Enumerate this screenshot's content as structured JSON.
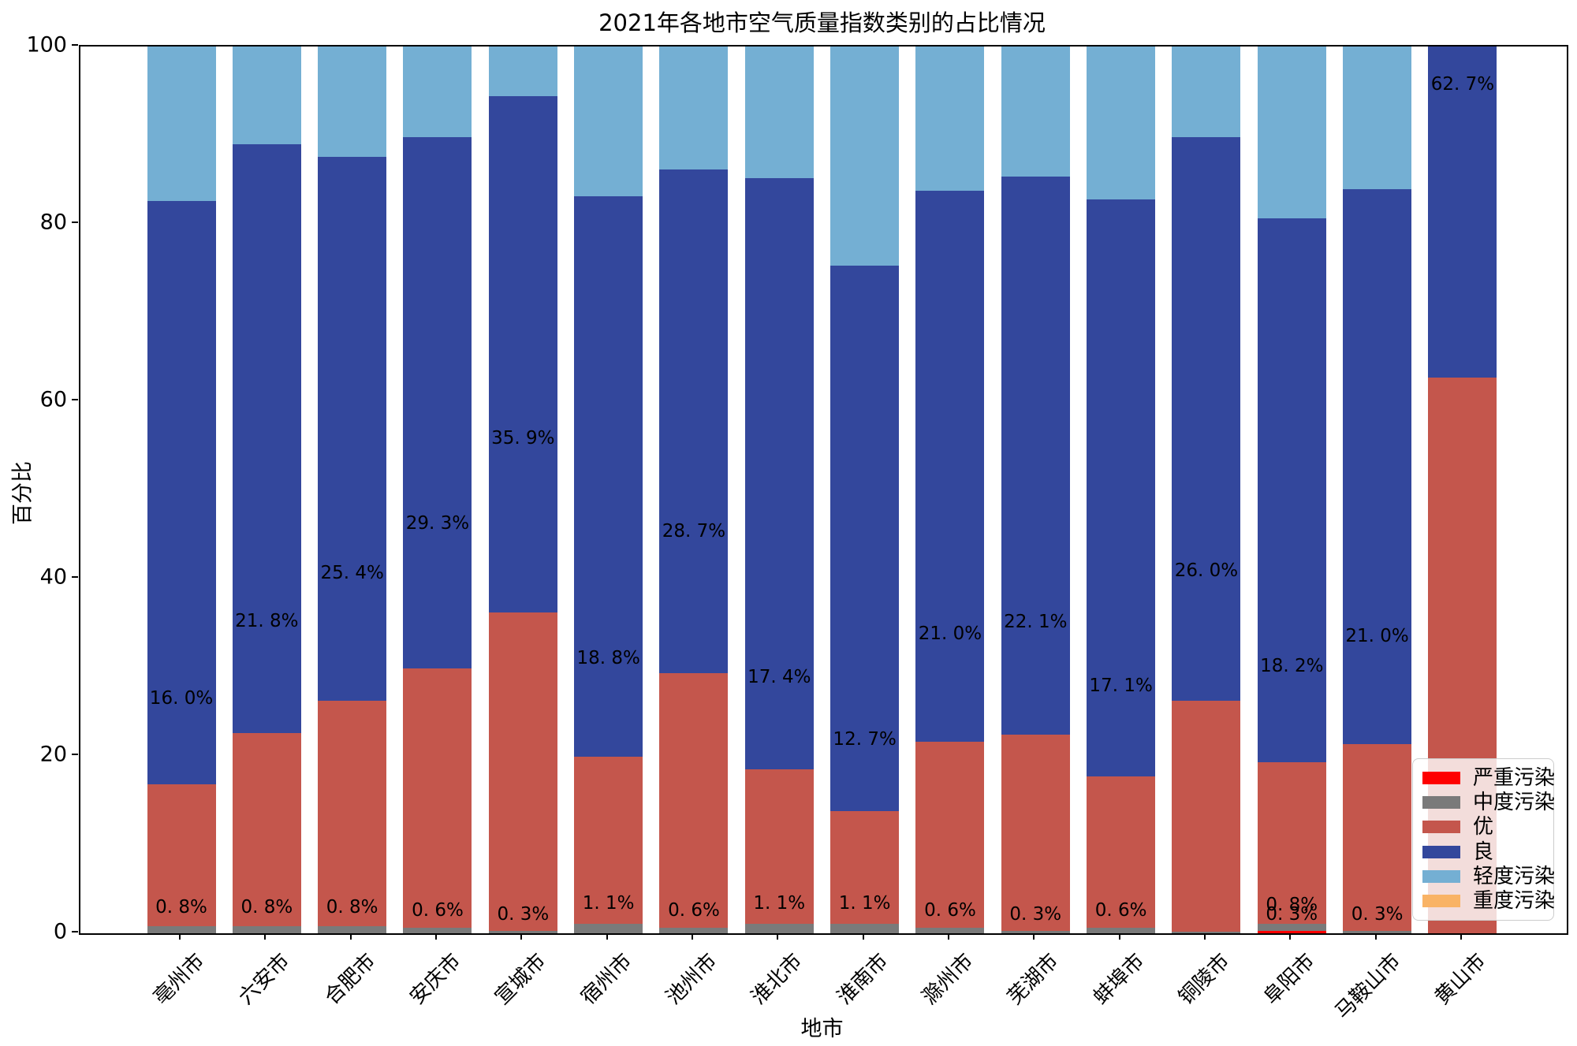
{
  "title": "2021年各地市空气质量指数类别的占比情况",
  "x_axis_title": "地市",
  "y_axis_title": "百分比",
  "y_ticks": [
    0,
    20,
    40,
    60,
    80,
    100
  ],
  "legend": {
    "entries": [
      {
        "label": "严重污染",
        "color": "#fe0000"
      },
      {
        "label": "中度污染",
        "color": "#7a7a7a"
      },
      {
        "label": "优",
        "color": "#c4564c"
      },
      {
        "label": "良",
        "color": "#33479c"
      },
      {
        "label": "轻度污染",
        "color": "#74afd3"
      },
      {
        "label": "重度污染",
        "color": "#f9b365"
      }
    ]
  },
  "chart_data": {
    "type": "bar",
    "stacked": true,
    "ylim": [
      0,
      100
    ],
    "grid": false,
    "legend_position": "lower right",
    "categories": [
      "亳州市",
      "六安市",
      "合肥市",
      "安庆市",
      "宣城市",
      "宿州市",
      "池州市",
      "淮北市",
      "淮南市",
      "滁州市",
      "芜湖市",
      "蚌埠市",
      "铜陵市",
      "阜阳市",
      "马鞍山市",
      "黄山市"
    ],
    "series": [
      {
        "name": "严重污染",
        "color": "#fe0000",
        "values": [
          0,
          0,
          0,
          0,
          0,
          0,
          0,
          0,
          0,
          0,
          0,
          0,
          0,
          0.3,
          0,
          0
        ],
        "labels": [
          null,
          null,
          null,
          null,
          null,
          null,
          null,
          null,
          null,
          null,
          null,
          null,
          null,
          "0. 3%",
          null,
          null
        ]
      },
      {
        "name": "中度污染",
        "color": "#7a7a7a",
        "values": [
          0.8,
          0.8,
          0.8,
          0.6,
          0.3,
          1.1,
          0.6,
          1.1,
          1.1,
          0.6,
          0.3,
          0.6,
          0.2,
          0.8,
          0.3,
          0
        ],
        "labels": [
          "0. 8%",
          "0. 8%",
          "0. 8%",
          "0. 6%",
          "0. 3%",
          "1. 1%",
          "0. 6%",
          "1. 1%",
          "1. 1%",
          "0. 6%",
          "0. 3%",
          "0. 6%",
          null,
          "0. 8%",
          "0. 3%",
          null
        ]
      },
      {
        "name": "优",
        "color": "#c4564c",
        "values": [
          16.0,
          21.8,
          25.4,
          29.3,
          35.9,
          18.8,
          28.7,
          17.4,
          12.7,
          21.0,
          22.1,
          17.1,
          26.0,
          18.2,
          21.0,
          62.7
        ],
        "labels": [
          "16. 0%",
          "21. 8%",
          "25. 4%",
          "29. 3%",
          "35. 9%",
          "18. 8%",
          "28. 7%",
          "17. 4%",
          "12. 7%",
          "21. 0%",
          "22. 1%",
          "17. 1%",
          "26. 0%",
          "18. 2%",
          "21. 0%",
          "62. 7%"
        ]
      },
      {
        "name": "良",
        "color": "#33479c",
        "values": [
          65.8,
          66.4,
          61.4,
          59.9,
          58.2,
          63.2,
          56.8,
          66.7,
          61.5,
          62.1,
          62.9,
          65.1,
          63.6,
          61.3,
          62.6,
          37.3
        ],
        "labels": [
          null,
          null,
          null,
          null,
          null,
          null,
          null,
          null,
          null,
          null,
          null,
          null,
          null,
          null,
          null,
          null
        ]
      },
      {
        "name": "轻度污染",
        "color": "#74afd3",
        "values": [
          17.4,
          11.0,
          12.4,
          10.2,
          5.6,
          16.9,
          13.9,
          14.8,
          24.7,
          16.3,
          14.7,
          17.2,
          10.2,
          19.4,
          16.1,
          0
        ],
        "labels": [
          null,
          null,
          null,
          null,
          null,
          null,
          null,
          null,
          null,
          null,
          null,
          null,
          null,
          null,
          null,
          null
        ]
      },
      {
        "name": "重度污染",
        "color": "#f9b365",
        "values": [
          0,
          0,
          0,
          0,
          0,
          0,
          0,
          0,
          0,
          0,
          0,
          0,
          0,
          0,
          0,
          0
        ],
        "labels": [
          null,
          null,
          null,
          null,
          null,
          null,
          null,
          null,
          null,
          null,
          null,
          null,
          null,
          null,
          null,
          null
        ]
      }
    ]
  }
}
